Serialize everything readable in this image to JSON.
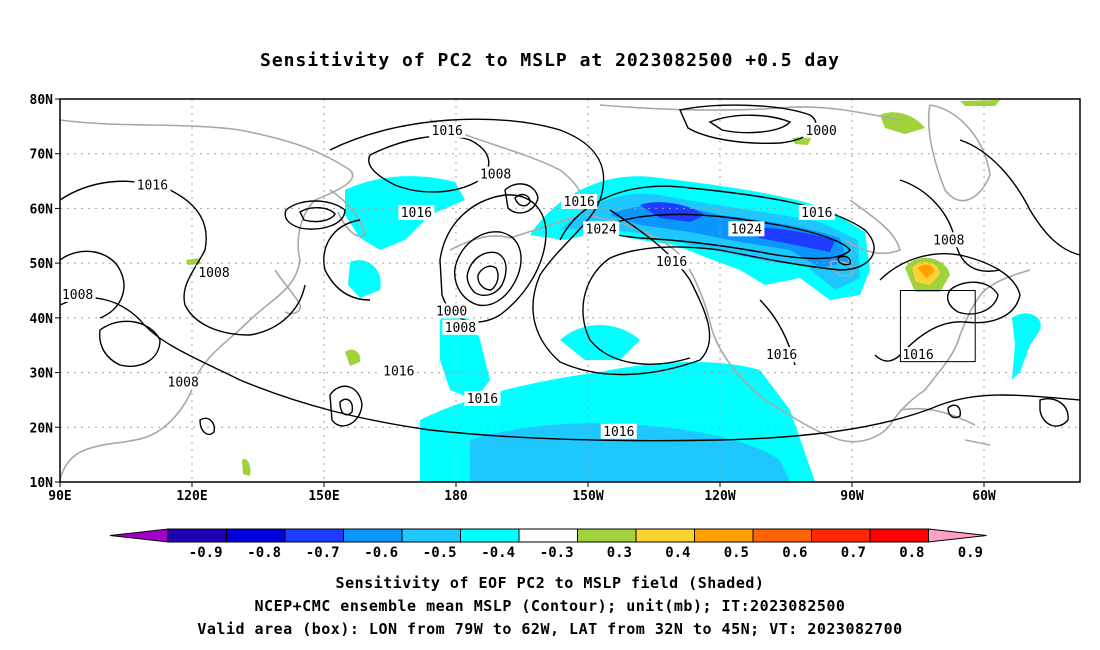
{
  "title": "Sensitivity of PC2 to MSLP at 2023082500 +0.5 day",
  "map": {
    "lat_ticks": [
      "80N",
      "70N",
      "60N",
      "50N",
      "40N",
      "30N",
      "20N",
      "10N"
    ],
    "lon_ticks": [
      "90E",
      "120E",
      "150E",
      "180",
      "150W",
      "120W",
      "90W",
      "60W"
    ],
    "contour_labels": [
      {
        "text": "1016",
        "lon": 178,
        "lat": 74
      },
      {
        "text": "1016",
        "lon": 111,
        "lat": 64
      },
      {
        "text": "1016",
        "lon": 171,
        "lat": 59
      },
      {
        "text": "1016",
        "lon": -152,
        "lat": 61
      },
      {
        "text": "1024",
        "lon": -147,
        "lat": 56
      },
      {
        "text": "1024",
        "lon": -114,
        "lat": 56
      },
      {
        "text": "1016",
        "lon": -98,
        "lat": 59
      },
      {
        "text": "1016",
        "lon": -131,
        "lat": 50
      },
      {
        "text": "1016",
        "lon": -106,
        "lat": 33
      },
      {
        "text": "1016",
        "lon": 167,
        "lat": 30
      },
      {
        "text": "1016",
        "lon": -174,
        "lat": 25
      },
      {
        "text": "1016",
        "lon": -143,
        "lat": 19
      },
      {
        "text": "1016",
        "lon": -75,
        "lat": 33
      },
      {
        "text": "1008",
        "lon": -171,
        "lat": 66
      },
      {
        "text": "1008",
        "lon": 125,
        "lat": 48
      },
      {
        "text": "1008",
        "lon": 94,
        "lat": 44
      },
      {
        "text": "1008",
        "lon": 118,
        "lat": 28
      },
      {
        "text": "1000",
        "lon": 179,
        "lat": 41
      },
      {
        "text": "1008",
        "lon": -179,
        "lat": 38
      },
      {
        "text": "1000",
        "lon": -97,
        "lat": 74
      },
      {
        "text": "1008",
        "lon": -68,
        "lat": 54
      }
    ],
    "valid_box": {
      "lon_min": -79,
      "lon_max": -62,
      "lat_min": 32,
      "lat_max": 45
    }
  },
  "colorbar": {
    "labels": [
      "-0.9",
      "-0.8",
      "-0.7",
      "-0.6",
      "-0.5",
      "-0.4",
      "-0.3",
      "0.3",
      "0.4",
      "0.5",
      "0.6",
      "0.7",
      "0.8",
      "0.9"
    ],
    "colors": [
      "#a000c8",
      "#1e00b4",
      "#0000dc",
      "#1e3cff",
      "#0a96ff",
      "#1ec8ff",
      "#00ffff",
      "#ffffff",
      "#a0d23c",
      "#ffd232",
      "#ffa000",
      "#ff6400",
      "#ff2800",
      "#ff0000",
      "#ffa0c8"
    ]
  },
  "caption": [
    "Sensitivity of EOF PC2 to MSLP field (Shaded)",
    "NCEP+CMC ensemble mean MSLP (Contour); unit(mb); IT:2023082500",
    "Valid area (box): LON from 79W to 62W, LAT from 32N to 45N; VT: 2023082700"
  ]
}
